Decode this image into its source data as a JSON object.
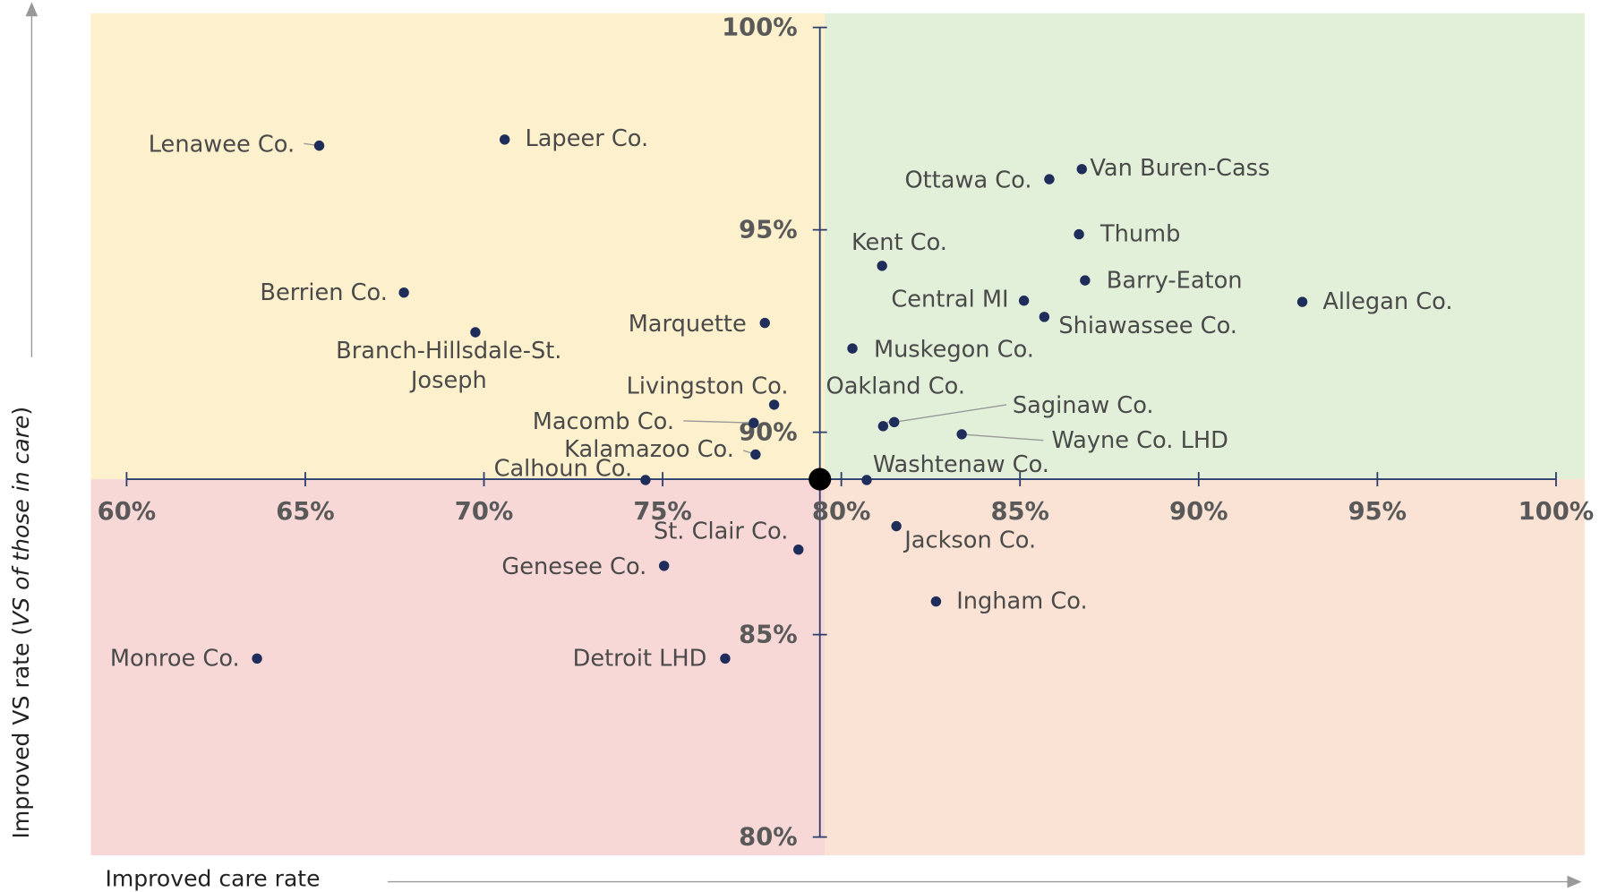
{
  "chart_data": {
    "type": "scatter",
    "xlabel": "Improved care rate",
    "ylabel": {
      "text": "Improved VS rate (",
      "italic": "VS of those in care",
      "end": ")"
    },
    "xlim": [
      59,
      100.8
    ],
    "ylim": [
      79.55,
      100.35
    ],
    "xticks": [
      {
        "value": 60,
        "label": "60%"
      },
      {
        "value": 65,
        "label": "65%"
      },
      {
        "value": 70,
        "label": "70%"
      },
      {
        "value": 75,
        "label": "75%"
      },
      {
        "value": 80,
        "label": "80%"
      },
      {
        "value": 85,
        "label": "85%"
      },
      {
        "value": 90,
        "label": "90%"
      },
      {
        "value": 95,
        "label": "95%"
      },
      {
        "value": 100,
        "label": "100%"
      }
    ],
    "yticks": [
      {
        "value": 80,
        "label": "80%"
      },
      {
        "value": 85,
        "label": "85%"
      },
      {
        "value": 90,
        "label": "90%"
      },
      {
        "value": 95,
        "label": "95%"
      },
      {
        "value": 100,
        "label": "100%"
      }
    ],
    "reference_point": {
      "x": 79.4,
      "y": 88.84
    },
    "quadrant_colors": {
      "top_left": "#fdf0cc",
      "top_right": "#e2efd9",
      "bottom_left": "#f8d7d7",
      "bottom_right": "#fae3d4"
    },
    "color": "#1f2d5a",
    "labels": [
      "Lenawee Co.",
      "Lapeer Co.",
      "Berrien Co.",
      "Branch-Hillsdale-St. Joseph",
      "Marquette",
      "Livingston Co.",
      "Macomb Co.",
      "Kalamazoo Co.",
      "Calhoun Co.",
      "St. Clair Co.",
      "Genesee Co.",
      "Monroe Co.",
      "Detroit LHD",
      "Kent Co.",
      "Ottawa Co.",
      "Van Buren-Cass",
      "Thumb",
      "Barry-Eaton",
      "Central MI",
      "Shiawassee Co.",
      "Allegan Co.",
      "Muskegon Co.",
      "Oakland Co.",
      "Saginaw Co.",
      "Wayne Co. LHD",
      "Washtenaw Co.",
      "Jackson Co.",
      "Ingham Co."
    ],
    "x": [
      65.39,
      70.58,
      67.76,
      69.76,
      77.86,
      78.12,
      77.55,
      77.6,
      74.52,
      78.8,
      75.04,
      63.65,
      76.75,
      81.14,
      85.82,
      86.73,
      86.65,
      86.82,
      85.11,
      85.68,
      92.9,
      80.31,
      81.17,
      81.48,
      83.37,
      80.71,
      81.54,
      82.65
    ],
    "values": [
      97.08,
      97.23,
      93.45,
      92.47,
      92.7,
      90.68,
      90.23,
      89.45,
      88.82,
      87.1,
      86.7,
      84.41,
      84.41,
      94.11,
      96.25,
      96.5,
      94.89,
      93.75,
      93.25,
      92.85,
      93.22,
      92.07,
      90.15,
      90.25,
      89.95,
      88.82,
      87.68,
      85.82
    ]
  }
}
